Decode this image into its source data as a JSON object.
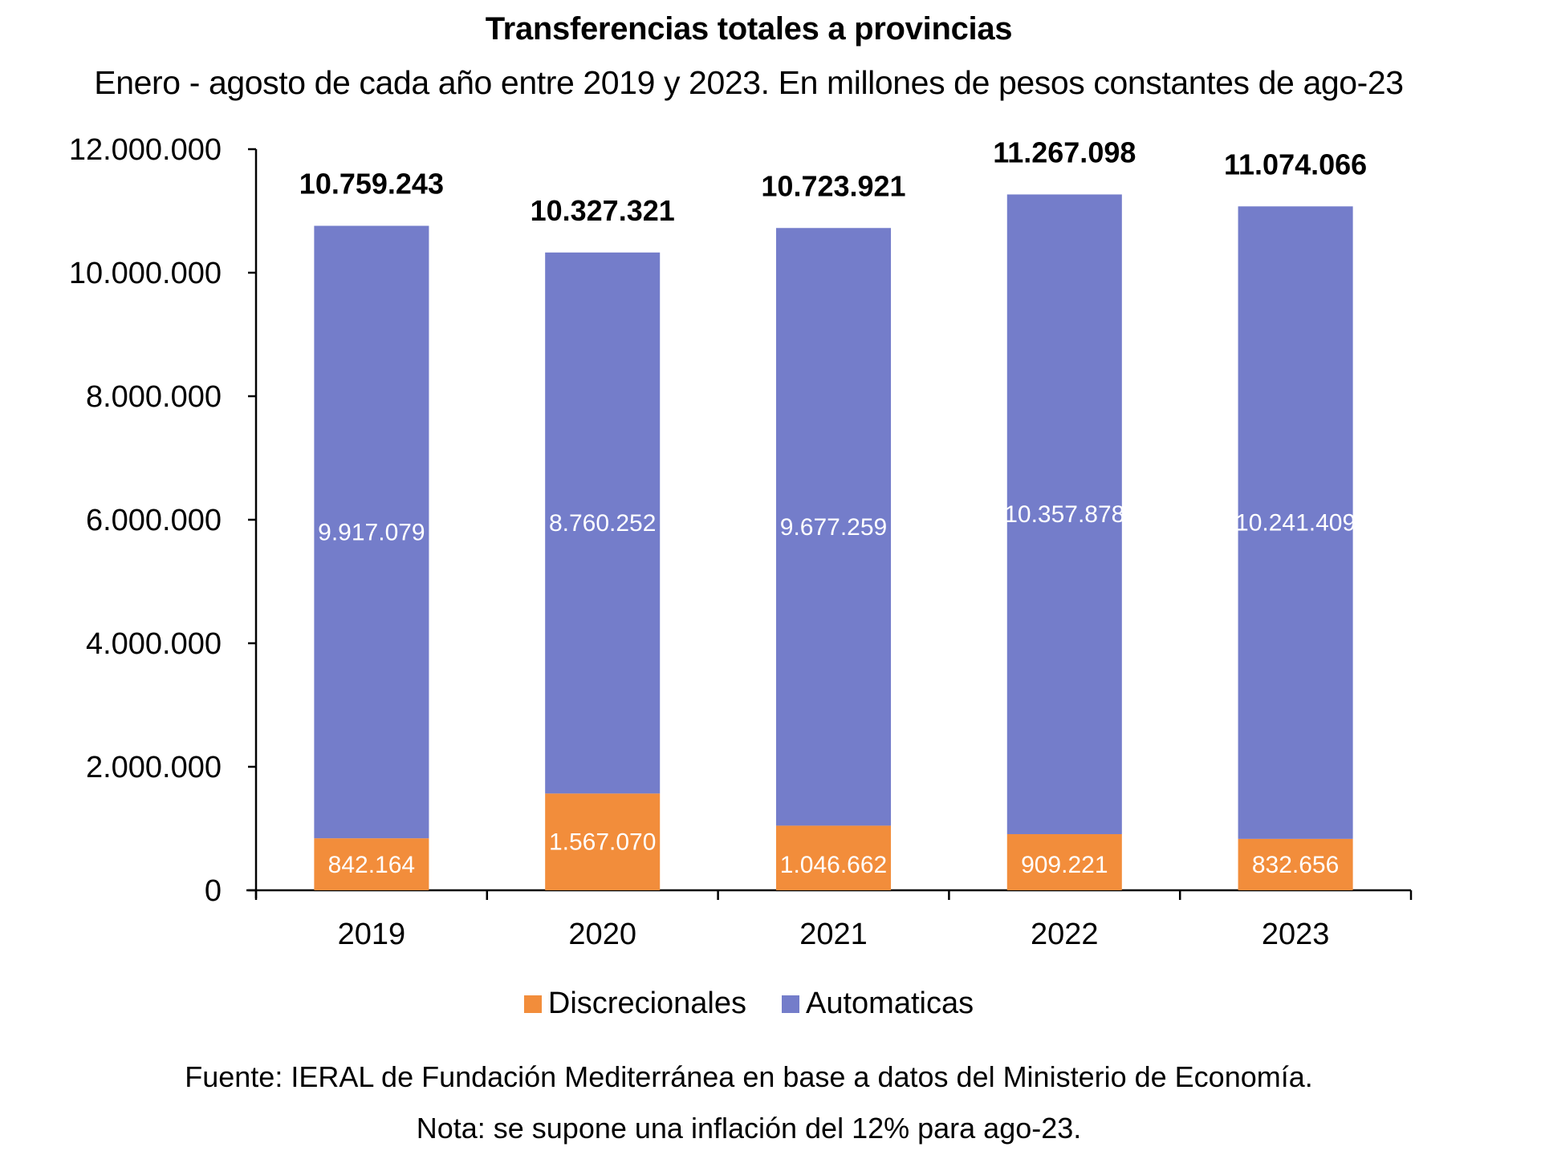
{
  "chart_data": {
    "type": "bar",
    "stacked": true,
    "title": "Transferencias totales a provincias",
    "subtitle": "Enero - agosto de cada año entre 2019 y 2023. En millones de pesos constantes de ago-23",
    "xlabel": "",
    "ylabel": "",
    "categories": [
      "2019",
      "2020",
      "2021",
      "2022",
      "2023"
    ],
    "series": [
      {
        "name": "Discrecionales",
        "color": "#F28D3B",
        "values": [
          842164,
          1567070,
          1046662,
          909221,
          832656
        ],
        "labels": [
          "842.164",
          "1.567.070",
          "1.046.662",
          "909.221",
          "832.656"
        ]
      },
      {
        "name": "Automaticas",
        "color": "#747DCA",
        "values": [
          9917079,
          8760252,
          9677259,
          10357878,
          10241409
        ],
        "labels": [
          "9.917.079",
          "8.760.252",
          "9.677.259",
          "10.357.878",
          "10.241.409"
        ]
      }
    ],
    "totals": [
      10759243,
      10327321,
      10723921,
      11267098,
      11074066
    ],
    "total_labels": [
      "10.759.243",
      "10.327.321",
      "10.723.921",
      "11.267.098",
      "11.074.066"
    ],
    "ylim": [
      0,
      12000000
    ],
    "yticks": [
      0,
      2000000,
      4000000,
      6000000,
      8000000,
      10000000,
      12000000
    ],
    "ytick_labels": [
      "0",
      "2.000.000",
      "4.000.000",
      "6.000.000",
      "8.000.000",
      "10.000.000",
      "12.000.000"
    ],
    "grid": false,
    "legend_position": "bottom-center"
  },
  "legend": {
    "items": [
      {
        "label": "Discrecionales",
        "color": "#F28D3B"
      },
      {
        "label": "Automaticas",
        "color": "#747DCA"
      }
    ]
  },
  "footer": {
    "source": "Fuente: IERAL de Fundación Mediterránea en base a datos del Ministerio de Economía.",
    "note": "Nota: se supone una inflación del 12% para ago-23."
  }
}
